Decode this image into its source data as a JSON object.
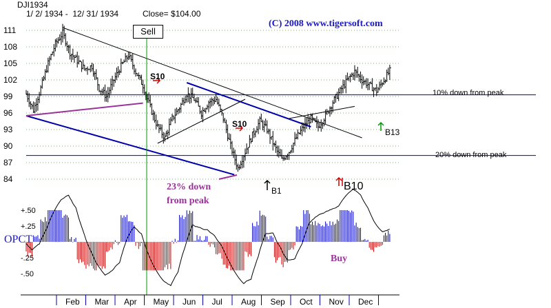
{
  "header": {
    "symbol": "DJI1934",
    "range": "1/ 2/ 1934 -  12/ 31/ 1934",
    "close": "Close= $104.00",
    "copyright": "(C) 2008  www.tigersoft.com"
  },
  "colors": {
    "price_bar": "#000000",
    "trend_blue": "#0000aa",
    "trend_purple": "#993399",
    "level_line": "#0000aa",
    "grid_dots": "#8aaa8a",
    "sell_line": "#009900",
    "hist_pos": "#0000cc",
    "hist_neg": "#cc0000",
    "copyright": "#1a1acc"
  },
  "chart_data": {
    "type": "bar",
    "title": "DJI1934",
    "price_axis": {
      "ticks": [
        "111",
        "108",
        "105",
        "102",
        "99",
        "96",
        "93",
        "90",
        "87",
        "84"
      ],
      "values": [
        111,
        108,
        105,
        102,
        99,
        96,
        93,
        90,
        87,
        84
      ],
      "ylim": [
        82.5,
        113
      ]
    },
    "months": [
      "Feb",
      "Mar",
      "Apr",
      "May",
      "Jun",
      "Jul",
      "Aug",
      "Sep",
      "Oct",
      "Nov",
      "Dec"
    ],
    "weekly_close": [
      {
        "week": 1,
        "close": 99.5
      },
      {
        "week": 2,
        "close": 96.5
      },
      {
        "week": 3,
        "close": 100.5
      },
      {
        "week": 4,
        "close": 105
      },
      {
        "week": 5,
        "close": 108.5
      },
      {
        "week": 6,
        "close": 110.5
      },
      {
        "week": 7,
        "close": 107
      },
      {
        "week": 8,
        "close": 105.5
      },
      {
        "week": 9,
        "close": 104
      },
      {
        "week": 10,
        "close": 104.5
      },
      {
        "week": 11,
        "close": 100.5
      },
      {
        "week": 12,
        "close": 99
      },
      {
        "week": 13,
        "close": 102
      },
      {
        "week": 14,
        "close": 104.5
      },
      {
        "week": 15,
        "close": 106.5
      },
      {
        "week": 16,
        "close": 103.5
      },
      {
        "week": 17,
        "close": 101
      },
      {
        "week": 18,
        "close": 97
      },
      {
        "week": 19,
        "close": 93.5
      },
      {
        "week": 20,
        "close": 91.5
      },
      {
        "week": 21,
        "close": 95
      },
      {
        "week": 22,
        "close": 97
      },
      {
        "week": 23,
        "close": 99.5
      },
      {
        "week": 24,
        "close": 98.5
      },
      {
        "week": 25,
        "close": 96
      },
      {
        "week": 26,
        "close": 98
      },
      {
        "week": 27,
        "close": 98.5
      },
      {
        "week": 28,
        "close": 95
      },
      {
        "week": 29,
        "close": 90
      },
      {
        "week": 30,
        "close": 86
      },
      {
        "week": 31,
        "close": 89
      },
      {
        "week": 32,
        "close": 92
      },
      {
        "week": 33,
        "close": 94.5
      },
      {
        "week": 34,
        "close": 93
      },
      {
        "week": 35,
        "close": 90
      },
      {
        "week": 36,
        "close": 87.5
      },
      {
        "week": 37,
        "close": 89
      },
      {
        "week": 38,
        "close": 91.5
      },
      {
        "week": 39,
        "close": 93.5
      },
      {
        "week": 40,
        "close": 95
      },
      {
        "week": 41,
        "close": 93.5
      },
      {
        "week": 42,
        "close": 95.5
      },
      {
        "week": 43,
        "close": 98
      },
      {
        "week": 44,
        "close": 100
      },
      {
        "week": 45,
        "close": 102
      },
      {
        "week": 46,
        "close": 103.5
      },
      {
        "week": 47,
        "close": 102
      },
      {
        "week": 48,
        "close": 101
      },
      {
        "week": 49,
        "close": 100
      },
      {
        "week": 50,
        "close": 102
      },
      {
        "week": 51,
        "close": 104
      }
    ],
    "levels": [
      {
        "label": "10% down from peak",
        "value": 99.3
      },
      {
        "label": "20% down from peak",
        "value": 88.3
      }
    ],
    "signals": [
      {
        "label": "Sell",
        "week": 15.5
      },
      {
        "label": "S10",
        "week": 16.5
      },
      {
        "label": "S10",
        "week": 30.2
      },
      {
        "label": "B1",
        "week": 34.5
      },
      {
        "label": "B10",
        "week": 43.8
      },
      {
        "label": "B13",
        "week": 49
      }
    ],
    "annotations": [
      "23% down",
      "from peak",
      "Buy"
    ],
    "opct": {
      "label": "OPCT",
      "ticks": [
        "+.50",
        "+.25",
        "-.25",
        "-.50"
      ],
      "values": [
        0.5,
        0.25,
        -0.25,
        -0.5
      ]
    }
  }
}
